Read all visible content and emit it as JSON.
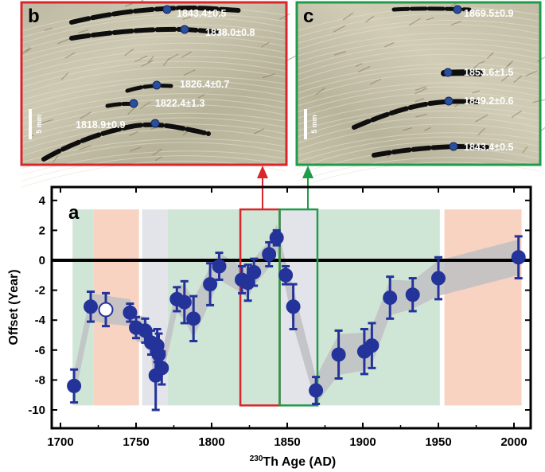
{
  "chart_data": [
    {
      "type": "scatter",
      "panel_label": "a",
      "xlabel_prefix": "230",
      "xlabel": "Th Age (AD)",
      "ylabel": "Offset (Year)",
      "xlim": [
        1690,
        2010
      ],
      "ylim": [
        -10.5,
        4.5
      ],
      "x_ticks": [
        1700,
        1750,
        1800,
        1850,
        1900,
        1950,
        2000
      ],
      "y_ticks": [
        4,
        2,
        0,
        -2,
        -4,
        -6,
        -8,
        -10
      ],
      "zero_line": 0,
      "background_bands": [
        {
          "from": 1708,
          "to": 1722,
          "color": "#cfe6d6"
        },
        {
          "from": 1722,
          "to": 1752,
          "color": "#f8d3c2"
        },
        {
          "from": 1752,
          "to": 1754,
          "color": "#ffffff"
        },
        {
          "from": 1754,
          "to": 1771,
          "color": "#e3e4ea"
        },
        {
          "from": 1771,
          "to": 1845,
          "color": "#cfe6d6"
        },
        {
          "from": 1845,
          "to": 1871,
          "color": "#e3e4ea"
        },
        {
          "from": 1871,
          "to": 1951,
          "color": "#cfe6d6"
        },
        {
          "from": 1951,
          "to": 1954,
          "color": "#ffffff"
        },
        {
          "from": 1954,
          "to": 2005,
          "color": "#f8d3c2"
        }
      ],
      "band_ylim": [
        -9.7,
        3.4
      ],
      "highlight_boxes": [
        {
          "from": 1819,
          "to": 1845,
          "ymin": -9.7,
          "ymax": 3.4,
          "color": "#d9262b"
        },
        {
          "from": 1845,
          "to": 1870,
          "ymin": -9.7,
          "ymax": 3.4,
          "color": "#1e9c4a"
        }
      ],
      "points": [
        {
          "x": 1709,
          "y": -8.4,
          "err": 1.1
        },
        {
          "x": 1720,
          "y": -3.1,
          "err": 1.0
        },
        {
          "x": 1730,
          "y": -3.3,
          "err": 1.1,
          "open": true
        },
        {
          "x": 1746,
          "y": -3.5,
          "err": 0.6
        },
        {
          "x": 1750,
          "y": -4.5,
          "err": 0.7
        },
        {
          "x": 1756,
          "y": -4.7,
          "err": 0.8
        },
        {
          "x": 1760,
          "y": -5.5,
          "err": 0.8
        },
        {
          "x": 1763,
          "y": -7.7,
          "err": 2.3
        },
        {
          "x": 1764,
          "y": -5.7,
          "err": 1.1
        },
        {
          "x": 1765,
          "y": -6.3,
          "err": 1.4
        },
        {
          "x": 1767,
          "y": -7.2,
          "err": 1.1
        },
        {
          "x": 1777,
          "y": -2.6,
          "err": 0.8
        },
        {
          "x": 1782,
          "y": -2.8,
          "err": 1.4
        },
        {
          "x": 1788,
          "y": -3.9,
          "err": 1.5
        },
        {
          "x": 1799,
          "y": -1.6,
          "err": 1.4
        },
        {
          "x": 1805,
          "y": -0.4,
          "err": 0.9
        },
        {
          "x": 1820,
          "y": -1.3,
          "err": 0.9
        },
        {
          "x": 1824,
          "y": -1.5,
          "err": 1.2
        },
        {
          "x": 1828,
          "y": -0.8,
          "err": 0.9
        },
        {
          "x": 1838,
          "y": 0.4,
          "err": 0.8
        },
        {
          "x": 1843,
          "y": 1.5,
          "err": 0.5
        },
        {
          "x": 1849,
          "y": -1.0,
          "err": 0.6
        },
        {
          "x": 1854,
          "y": -3.1,
          "err": 1.5
        },
        {
          "x": 1869,
          "y": -8.7,
          "err": 0.9
        },
        {
          "x": 1884,
          "y": -6.3,
          "err": 1.6
        },
        {
          "x": 1901,
          "y": -6.1,
          "err": 1.5
        },
        {
          "x": 1906,
          "y": -5.7,
          "err": 1.5
        },
        {
          "x": 1918,
          "y": -2.5,
          "err": 1.4
        },
        {
          "x": 1933,
          "y": -2.3,
          "err": 1.1
        },
        {
          "x": 1950,
          "y": -1.2,
          "err": 1.4
        },
        {
          "x": 2003,
          "y": 0.2,
          "err": 1.4
        }
      ],
      "colors": {
        "marker": "#23339a",
        "marker_open": "#ffffff",
        "envelope": "#bfbfc3"
      }
    },
    {
      "type": "image",
      "panel_label": "b",
      "scale_bar": "5 mm",
      "frame_color": "#d9262b",
      "layers": [
        {
          "label": "1843.4±0.5"
        },
        {
          "label": "1838.0±0.8"
        },
        {
          "label": "1826.4±0.7"
        },
        {
          "label": "1822.4±1.3"
        },
        {
          "label": "1818.9±0.9"
        }
      ]
    },
    {
      "type": "image",
      "panel_label": "c",
      "scale_bar": "5 mm",
      "frame_color": "#1e9c4a",
      "layers": [
        {
          "label": "1869.5±0.9"
        },
        {
          "label": "1853.6±1.5"
        },
        {
          "label": "1849.2±0.6"
        },
        {
          "label": "1843.4±0.5"
        }
      ]
    }
  ]
}
